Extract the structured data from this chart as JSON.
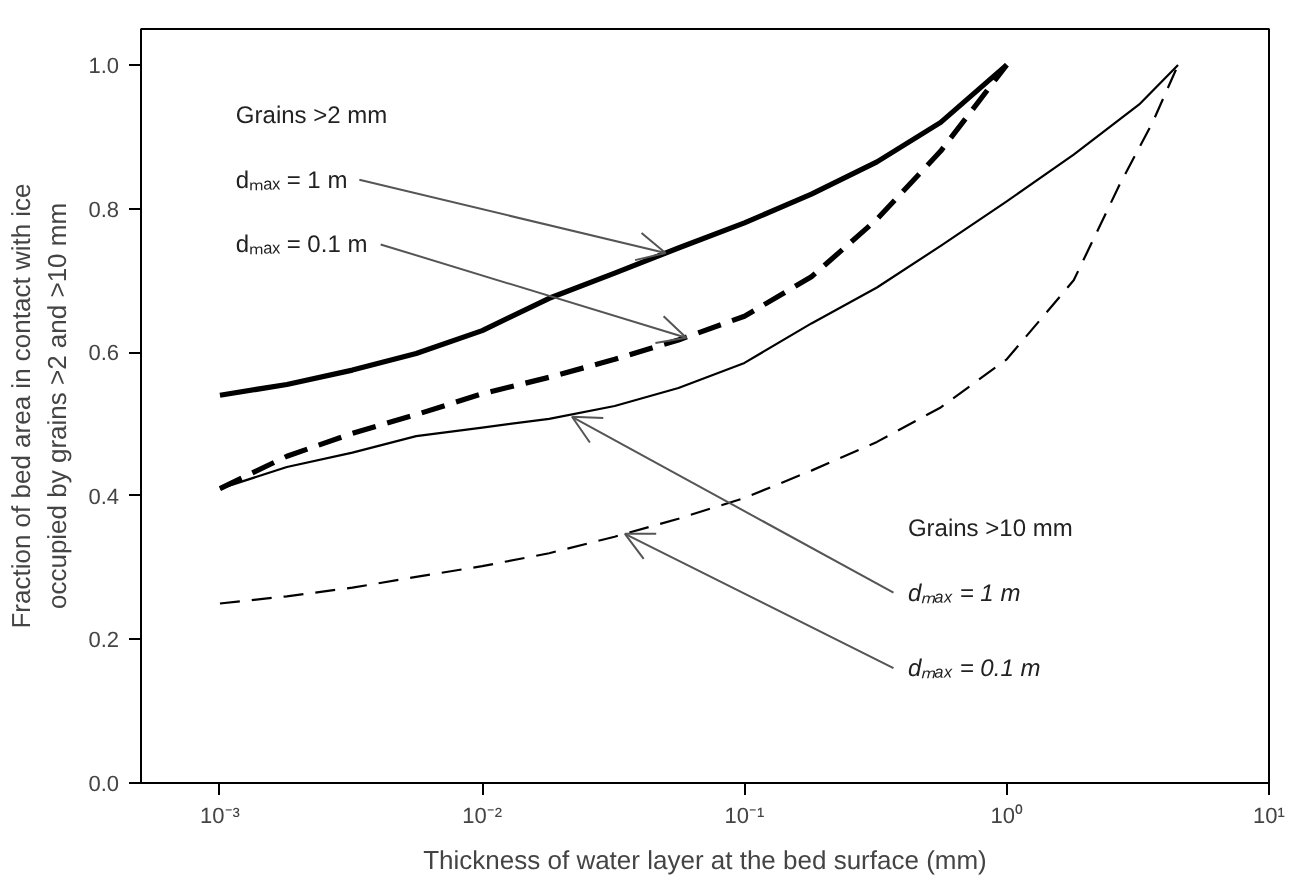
{
  "chart_data": {
    "type": "line",
    "xlabel": "Thickness of water layer at the bed surface (mm)",
    "ylabel": "Fraction of bed area in contact with ice\noccupied by grains >2 and >10 mm",
    "log": "x",
    "grid": false,
    "marker": "none",
    "xlim": [
      0.0005,
      10
    ],
    "ylim": [
      0,
      1.05
    ],
    "xticks": [
      {
        "value": 0.001,
        "label": "10⁻³"
      },
      {
        "value": 0.01,
        "label": "10⁻²"
      },
      {
        "value": 0.1,
        "label": "10⁻¹"
      },
      {
        "value": 1,
        "label": "10⁰"
      },
      {
        "value": 10,
        "label": "10¹"
      }
    ],
    "yticks": [
      {
        "value": 0,
        "label": "0.0"
      },
      {
        "value": 0.2,
        "label": "0.2"
      },
      {
        "value": 0.4,
        "label": "0.4"
      },
      {
        "value": 0.6,
        "label": "0.6"
      },
      {
        "value": 0.8,
        "label": "0.8"
      },
      {
        "value": 1,
        "label": "1.0"
      }
    ],
    "series": [
      {
        "color": "#000000",
        "line_style": "solid",
        "x": [
          0.001,
          0.0018,
          0.0032,
          0.0056,
          0.01,
          0.018,
          0.032,
          0.056,
          0.1,
          0.18,
          0.32,
          0.56,
          1
        ],
        "values": [
          0.54,
          0.555,
          0.575,
          0.598,
          0.63,
          0.675,
          0.71,
          0.745,
          0.78,
          0.82,
          0.865,
          0.92,
          1.0
        ]
      },
      {
        "color": "#000000",
        "line_style": "dashed",
        "x": [
          0.001,
          0.0018,
          0.0032,
          0.0056,
          0.01,
          0.018,
          0.032,
          0.056,
          0.1,
          0.18,
          0.32,
          0.56,
          1
        ],
        "values": [
          0.41,
          0.455,
          0.487,
          0.513,
          0.542,
          0.565,
          0.59,
          0.617,
          0.65,
          0.705,
          0.785,
          0.88,
          1.0
        ]
      },
      {
        "color": "#000000",
        "line_style": "solid",
        "x": [
          0.001,
          0.0018,
          0.0032,
          0.0056,
          0.01,
          0.018,
          0.032,
          0.056,
          0.1,
          0.18,
          0.32,
          0.56,
          1,
          1.8,
          3.2,
          4.5
        ],
        "values": [
          0.41,
          0.44,
          0.46,
          0.483,
          0.495,
          0.507,
          0.525,
          0.55,
          0.585,
          0.64,
          0.69,
          0.748,
          0.81,
          0.875,
          0.945,
          1.0
        ]
      },
      {
        "color": "#000000",
        "line_style": "dashed",
        "x": [
          0.001,
          0.0018,
          0.0032,
          0.0056,
          0.01,
          0.018,
          0.032,
          0.056,
          0.1,
          0.18,
          0.32,
          0.56,
          1,
          1.8,
          2.7,
          3.6,
          4.5
        ],
        "values": [
          0.25,
          0.26,
          0.272,
          0.287,
          0.302,
          0.32,
          0.343,
          0.368,
          0.397,
          0.435,
          0.475,
          0.523,
          0.59,
          0.7,
          0.834,
          0.92,
          1.0
        ]
      }
    ],
    "annotations": [
      "Grains >2 mm",
      {
        "text": "dₘₐₓ = 1 m",
        "x": 0.05,
        "y": 0.738
      },
      {
        "text": "dₘₐₓ = 0.1 m",
        "x": 0.06,
        "y": 0.62
      },
      "Grains >10 mm",
      {
        "text": "dₘₐₓ = 1 m",
        "x": 0.022,
        "y": 0.51
      },
      {
        "text": "dₘₐₓ = 0.1 m",
        "x": 0.035,
        "y": 0.347
      }
    ]
  }
}
